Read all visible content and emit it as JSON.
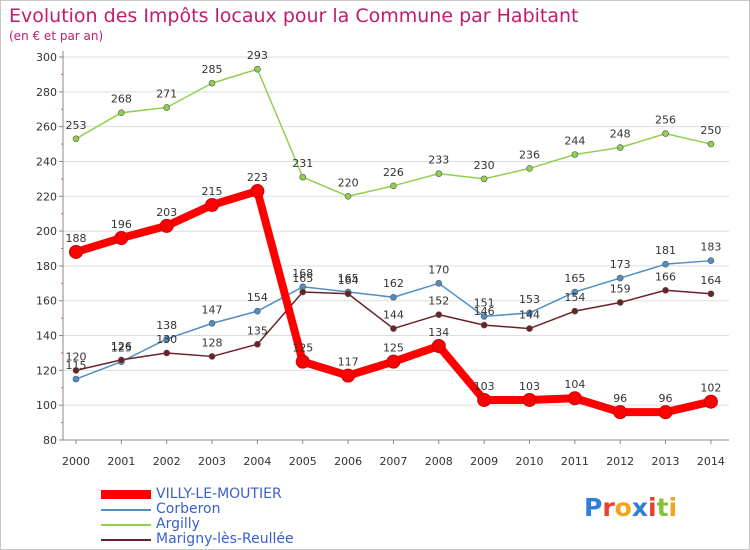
{
  "title": "Evolution des Impôts locaux pour la Commune par Habitant",
  "subtitle": "(en € et par an)",
  "logo_text": "Proxiti",
  "colors": {
    "title": "#c21b6d",
    "axis": "#888888",
    "grid": "#dddddd"
  },
  "chart_data": {
    "type": "line",
    "x": [
      "2000",
      "2001",
      "2002",
      "2003",
      "2004",
      "2005",
      "2006",
      "2007",
      "2008",
      "2009",
      "2010",
      "2011",
      "2012",
      "2013",
      "2014"
    ],
    "ylim": [
      80,
      300
    ],
    "yticks": [
      80,
      100,
      120,
      140,
      160,
      180,
      200,
      220,
      240,
      260,
      280,
      300
    ],
    "grid": "horizontal",
    "legend": "bottom-left",
    "series": [
      {
        "name": "VILLY-LE-MOUTIER",
        "color": "#ff0000",
        "bold": true,
        "values": [
          188,
          196,
          203,
          215,
          223,
          125,
          117,
          125,
          134,
          103,
          103,
          104,
          96,
          96,
          102
        ]
      },
      {
        "name": "Corberon",
        "color": "#4f8fc6",
        "bold": false,
        "values": [
          115,
          125,
          138,
          147,
          154,
          168,
          165,
          162,
          170,
          151,
          153,
          165,
          173,
          181,
          183
        ]
      },
      {
        "name": "Argilly",
        "color": "#8fd14f",
        "bold": false,
        "values": [
          253,
          268,
          271,
          285,
          293,
          231,
          220,
          226,
          233,
          230,
          236,
          244,
          248,
          256,
          250
        ]
      },
      {
        "name": "Marigny-lès-Reullée",
        "color": "#6b2226",
        "bold": false,
        "values": [
          120,
          126,
          130,
          128,
          135,
          165,
          164,
          144,
          152,
          146,
          144,
          154,
          159,
          166,
          164
        ]
      }
    ]
  }
}
